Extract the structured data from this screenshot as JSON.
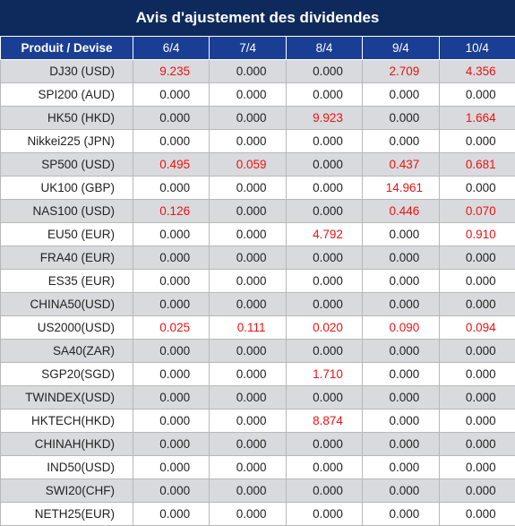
{
  "title": "Avis d'ajustement des dividendes",
  "columns": {
    "product": "Produit / Devise",
    "dates": [
      "6/4",
      "7/4",
      "8/4",
      "9/4",
      "10/4"
    ]
  },
  "colors": {
    "title_bg": "#0e2a5c",
    "header_bg": "#1a3e94",
    "row_shade": "#d9dadd",
    "positive_value": "#ee1111"
  },
  "rows": [
    {
      "product": "DJ30 (USD)",
      "values": [
        "9.235",
        "0.000",
        "0.000",
        "2.709",
        "4.356"
      ]
    },
    {
      "product": "SPI200 (AUD)",
      "values": [
        "0.000",
        "0.000",
        "0.000",
        "0.000",
        "0.000"
      ]
    },
    {
      "product": "HK50 (HKD)",
      "values": [
        "0.000",
        "0.000",
        "9.923",
        "0.000",
        "1.664"
      ]
    },
    {
      "product": "Nikkei225 (JPN)",
      "values": [
        "0.000",
        "0.000",
        "0.000",
        "0.000",
        "0.000"
      ]
    },
    {
      "product": "SP500 (USD)",
      "values": [
        "0.495",
        "0.059",
        "0.000",
        "0.437",
        "0.681"
      ]
    },
    {
      "product": "UK100 (GBP)",
      "values": [
        "0.000",
        "0.000",
        "0.000",
        "14.961",
        "0.000"
      ]
    },
    {
      "product": "NAS100 (USD)",
      "values": [
        "0.126",
        "0.000",
        "0.000",
        "0.446",
        "0.070"
      ]
    },
    {
      "product": "EU50 (EUR)",
      "values": [
        "0.000",
        "0.000",
        "4.792",
        "0.000",
        "0.910"
      ]
    },
    {
      "product": "FRA40 (EUR)",
      "values": [
        "0.000",
        "0.000",
        "0.000",
        "0.000",
        "0.000"
      ]
    },
    {
      "product": "ES35 (EUR)",
      "values": [
        "0.000",
        "0.000",
        "0.000",
        "0.000",
        "0.000"
      ]
    },
    {
      "product": "CHINA50(USD)",
      "values": [
        "0.000",
        "0.000",
        "0.000",
        "0.000",
        "0.000"
      ]
    },
    {
      "product": "US2000(USD)",
      "values": [
        "0.025",
        "0.111",
        "0.020",
        "0.090",
        "0.094"
      ]
    },
    {
      "product": "SA40(ZAR)",
      "values": [
        "0.000",
        "0.000",
        "0.000",
        "0.000",
        "0.000"
      ]
    },
    {
      "product": "SGP20(SGD)",
      "values": [
        "0.000",
        "0.000",
        "1.710",
        "0.000",
        "0.000"
      ]
    },
    {
      "product": "TWINDEX(USD)",
      "values": [
        "0.000",
        "0.000",
        "0.000",
        "0.000",
        "0.000"
      ]
    },
    {
      "product": "HKTECH(HKD)",
      "values": [
        "0.000",
        "0.000",
        "8.874",
        "0.000",
        "0.000"
      ]
    },
    {
      "product": "CHINAH(HKD)",
      "values": [
        "0.000",
        "0.000",
        "0.000",
        "0.000",
        "0.000"
      ]
    },
    {
      "product": "IND50(USD)",
      "values": [
        "0.000",
        "0.000",
        "0.000",
        "0.000",
        "0.000"
      ]
    },
    {
      "product": "SWI20(CHF)",
      "values": [
        "0.000",
        "0.000",
        "0.000",
        "0.000",
        "0.000"
      ]
    },
    {
      "product": "NETH25(EUR)",
      "values": [
        "0.000",
        "0.000",
        "0.000",
        "0.000",
        "0.000"
      ]
    }
  ]
}
